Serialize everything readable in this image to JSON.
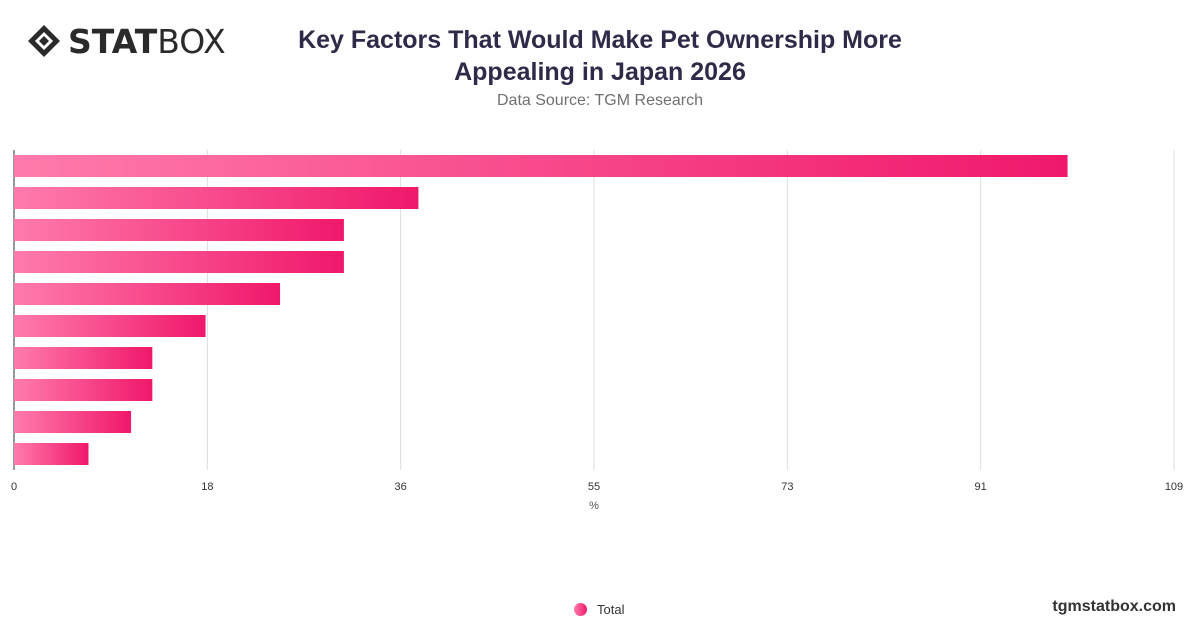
{
  "brand": {
    "logo_bold": "STAT",
    "logo_light": "BOX",
    "site": "tgmstatbox.com"
  },
  "header": {
    "title_line1": "Key Factors That Would Make Pet Ownership More",
    "title_line2": "Appealing in Japan 2026",
    "subtitle": "Data Source: TGM Research"
  },
  "colors": {
    "bar_start": "#ff7bac",
    "bar_end": "#f0186b",
    "grid": "#dddddd"
  },
  "chart_data": {
    "type": "bar",
    "orientation": "horizontal",
    "categories": [
      "",
      "",
      "",
      "",
      "",
      "",
      "",
      "",
      "",
      ""
    ],
    "series": [
      {
        "name": "Total",
        "values": [
          99,
          38,
          31,
          31,
          25,
          18,
          13,
          13,
          11,
          7
        ]
      }
    ],
    "xlabel": "%",
    "xlim": [
      0,
      109
    ],
    "xticks": [
      "0",
      "18",
      "36",
      "55",
      "73",
      "91",
      "109"
    ],
    "grid": true,
    "legend": "bottom-center"
  }
}
